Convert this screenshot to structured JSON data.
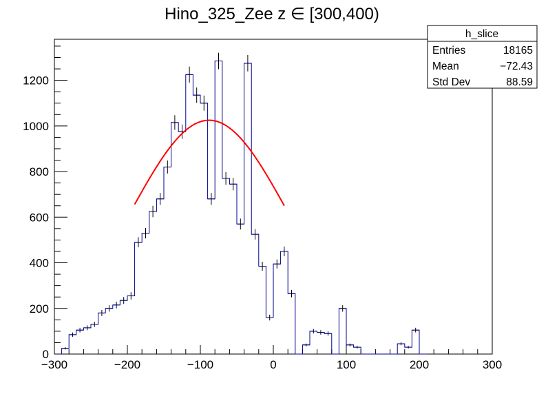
{
  "chart_data": {
    "type": "histogram",
    "title": "Hino_325_Zee z  ∈ [300,400)",
    "xlabel": "",
    "ylabel": "",
    "xlim": [
      -300,
      300
    ],
    "ylim": [
      0,
      1380
    ],
    "grid": false,
    "x_ticks": [
      -300,
      -200,
      -100,
      0,
      100,
      200,
      300
    ],
    "x_tick_labels": [
      "−300",
      "−200",
      "−100",
      "0",
      "100",
      "200",
      "300"
    ],
    "y_ticks": [
      0,
      200,
      400,
      600,
      800,
      1000,
      1200
    ],
    "y_tick_labels": [
      "0",
      "200",
      "400",
      "600",
      "800",
      "1000",
      "1200"
    ],
    "histogram_color": "#00008b",
    "fit_color": "#ff0000",
    "bin_edges_start": -290,
    "bin_width": 10,
    "bins": [
      {
        "x": -285,
        "y": 25
      },
      {
        "x": -275,
        "y": 85
      },
      {
        "x": -265,
        "y": 105
      },
      {
        "x": -255,
        "y": 115
      },
      {
        "x": -245,
        "y": 130
      },
      {
        "x": -235,
        "y": 180
      },
      {
        "x": -225,
        "y": 200
      },
      {
        "x": -215,
        "y": 215
      },
      {
        "x": -205,
        "y": 235
      },
      {
        "x": -195,
        "y": 255
      },
      {
        "x": -185,
        "y": 490
      },
      {
        "x": -175,
        "y": 530
      },
      {
        "x": -165,
        "y": 625
      },
      {
        "x": -155,
        "y": 680
      },
      {
        "x": -145,
        "y": 820
      },
      {
        "x": -135,
        "y": 1015
      },
      {
        "x": -125,
        "y": 975
      },
      {
        "x": -115,
        "y": 1225
      },
      {
        "x": -105,
        "y": 1135
      },
      {
        "x": -95,
        "y": 1100
      },
      {
        "x": -85,
        "y": 680
      },
      {
        "x": -75,
        "y": 1285
      },
      {
        "x": -65,
        "y": 770
      },
      {
        "x": -55,
        "y": 745
      },
      {
        "x": -45,
        "y": 570
      },
      {
        "x": -35,
        "y": 1275
      },
      {
        "x": -25,
        "y": 525
      },
      {
        "x": -15,
        "y": 385
      },
      {
        "x": -5,
        "y": 160
      },
      {
        "x": 5,
        "y": 395
      },
      {
        "x": 15,
        "y": 450
      },
      {
        "x": 25,
        "y": 265
      },
      {
        "x": 35,
        "y": 0
      },
      {
        "x": 45,
        "y": 40
      },
      {
        "x": 55,
        "y": 100
      },
      {
        "x": 65,
        "y": 95
      },
      {
        "x": 75,
        "y": 90
      },
      {
        "x": 85,
        "y": 0
      },
      {
        "x": 95,
        "y": 200
      },
      {
        "x": 105,
        "y": 40
      },
      {
        "x": 115,
        "y": 30
      },
      {
        "x": 125,
        "y": 0
      },
      {
        "x": 135,
        "y": 0
      },
      {
        "x": 145,
        "y": 0
      },
      {
        "x": 155,
        "y": 0
      },
      {
        "x": 165,
        "y": 0
      },
      {
        "x": 175,
        "y": 45
      },
      {
        "x": 185,
        "y": 30
      },
      {
        "x": 195,
        "y": 105
      },
      {
        "x": 205,
        "y": 0
      }
    ],
    "fit": {
      "type": "gaussian",
      "range": [
        -190,
        15
      ],
      "amplitude": 1025,
      "mean": -88,
      "sigma": 108
    }
  },
  "stats_box": {
    "title": "h_slice",
    "rows": [
      {
        "label": "Entries",
        "value": "18165"
      },
      {
        "label": "Mean",
        "value": "−72.43"
      },
      {
        "label": "Std Dev",
        "value": "88.59"
      }
    ]
  }
}
